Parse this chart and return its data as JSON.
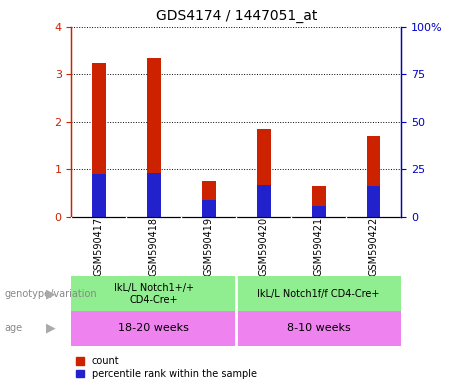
{
  "title": "GDS4174 / 1447051_at",
  "samples": [
    "GSM590417",
    "GSM590418",
    "GSM590419",
    "GSM590420",
    "GSM590421",
    "GSM590422"
  ],
  "red_values": [
    3.25,
    3.35,
    0.75,
    1.85,
    0.65,
    1.7
  ],
  "blue_values": [
    0.9,
    0.92,
    0.35,
    0.68,
    0.23,
    0.65
  ],
  "ylim": [
    0,
    4
  ],
  "yticks_left": [
    0,
    1,
    2,
    3,
    4
  ],
  "yticks_right": [
    0,
    25,
    50,
    75,
    100
  ],
  "bar_width": 0.25,
  "red_color": "#cc2200",
  "blue_color": "#2222cc",
  "genotype_label": "genotype/variation",
  "age_label": "age",
  "geno_group1_label": "IkL/L Notch1+/+\nCD4-Cre+",
  "geno_group2_label": "IkL/L Notch1f/f CD4-Cre+",
  "age_group1_label": "18-20 weeks",
  "age_group2_label": "8-10 weeks",
  "geno_color": "#90ee90",
  "age_color": "#ee82ee",
  "legend_red": "count",
  "legend_blue": "percentile rank within the sample",
  "bg_color": "#ffffff",
  "tick_label_color_left": "#cc2200",
  "tick_label_color_right": "#0000cc",
  "xtick_bg": "#d3d3d3"
}
